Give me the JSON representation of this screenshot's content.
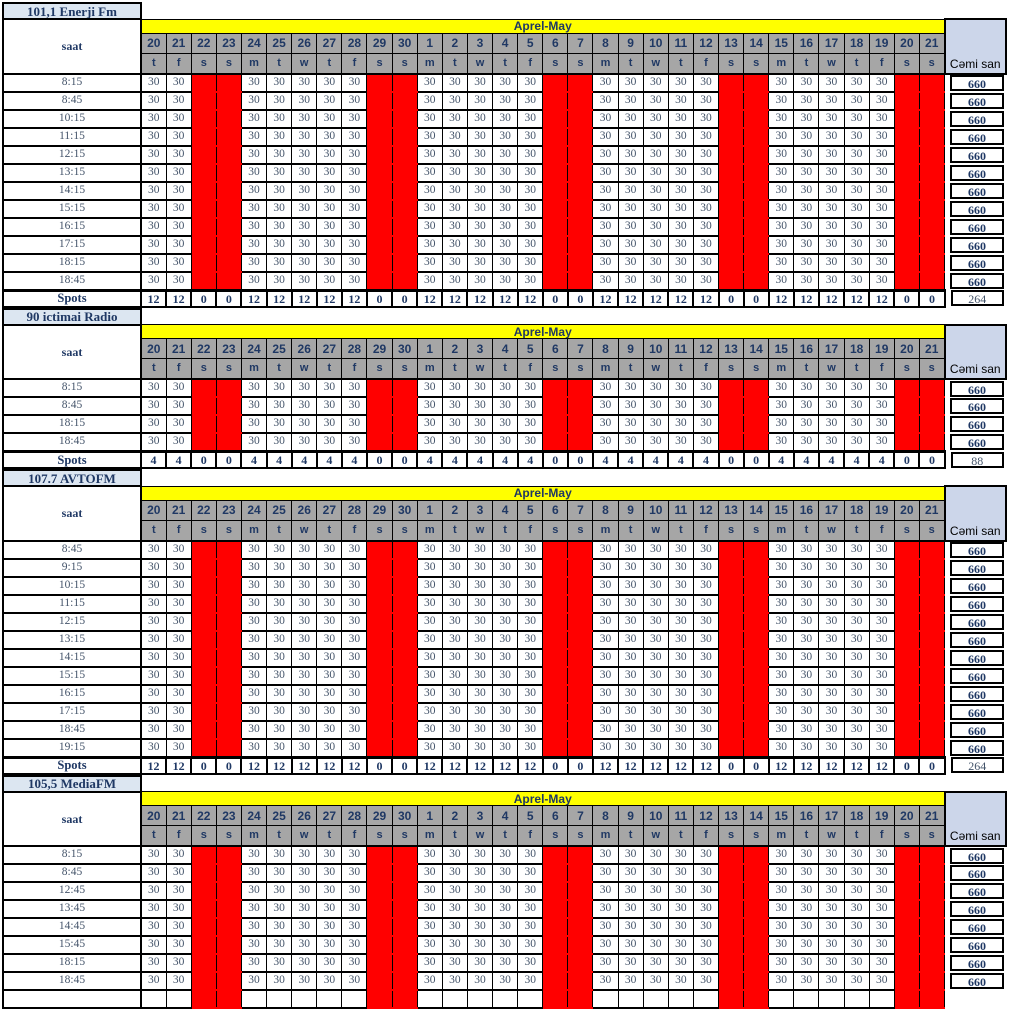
{
  "calendar": {
    "banner_label": "Aprel-May",
    "saat_label": "saat",
    "spots_label": "Spots",
    "total_header": "Cəmi san",
    "days": [
      {
        "num": "20",
        "dow": "t"
      },
      {
        "num": "21",
        "dow": "f"
      },
      {
        "num": "22",
        "dow": "s"
      },
      {
        "num": "23",
        "dow": "s"
      },
      {
        "num": "24",
        "dow": "m"
      },
      {
        "num": "25",
        "dow": "t"
      },
      {
        "num": "26",
        "dow": "w"
      },
      {
        "num": "27",
        "dow": "t"
      },
      {
        "num": "28",
        "dow": "f"
      },
      {
        "num": "29",
        "dow": "s"
      },
      {
        "num": "30",
        "dow": "s"
      },
      {
        "num": "1",
        "dow": "m"
      },
      {
        "num": "2",
        "dow": "t"
      },
      {
        "num": "3",
        "dow": "w"
      },
      {
        "num": "4",
        "dow": "t"
      },
      {
        "num": "5",
        "dow": "f"
      },
      {
        "num": "6",
        "dow": "s"
      },
      {
        "num": "7",
        "dow": "s"
      },
      {
        "num": "8",
        "dow": "m"
      },
      {
        "num": "9",
        "dow": "t"
      },
      {
        "num": "10",
        "dow": "w"
      },
      {
        "num": "11",
        "dow": "t"
      },
      {
        "num": "12",
        "dow": "f"
      },
      {
        "num": "13",
        "dow": "s"
      },
      {
        "num": "14",
        "dow": "s"
      },
      {
        "num": "15",
        "dow": "m"
      },
      {
        "num": "16",
        "dow": "t"
      },
      {
        "num": "17",
        "dow": "w"
      },
      {
        "num": "18",
        "dow": "t"
      },
      {
        "num": "19",
        "dow": "f"
      },
      {
        "num": "20",
        "dow": "s"
      },
      {
        "num": "21",
        "dow": "s"
      }
    ]
  },
  "stations": [
    {
      "name": "101,1 Enerji Fm",
      "times": [
        "8:15",
        "8:45",
        "10:15",
        "11:15",
        "12:15",
        "13:15",
        "14:15",
        "15:15",
        "16:15",
        "17:15",
        "18:15",
        "18:45"
      ],
      "spot_seconds": "30",
      "row_total": "660",
      "spots_weekday": "12",
      "spots_weekend": "0",
      "spots_total": "264",
      "truncated": false
    },
    {
      "name": "90 ictimai Radio",
      "times": [
        "8:15",
        "8:45",
        "18:15",
        "18:45"
      ],
      "spot_seconds": "30",
      "row_total": "660",
      "spots_weekday": "4",
      "spots_weekend": "0",
      "spots_total": "88",
      "truncated": false
    },
    {
      "name": "107.7 AVTOFM",
      "times": [
        "8:45",
        "9:15",
        "10:15",
        "11:15",
        "12:15",
        "13:15",
        "14:15",
        "15:15",
        "16:15",
        "17:15",
        "18:45",
        "19:15"
      ],
      "spot_seconds": "30",
      "row_total": "660",
      "spots_weekday": "12",
      "spots_weekend": "0",
      "spots_total": "264",
      "truncated": false
    },
    {
      "name": "105,5 MediaFM",
      "times": [
        "8:15",
        "8:45",
        "12:45",
        "13:45",
        "14:45",
        "15:45",
        "18:15",
        "18:45"
      ],
      "spot_seconds": "30",
      "row_total": "660",
      "truncated": true
    }
  ],
  "colors": {
    "banner_bg": "#ffff00",
    "weekend_bg": "#ff0000",
    "day_header_bg": "#a6a6a6",
    "station_title_bg": "#dce6f1",
    "total_header_bg": "#ccd6ea",
    "heading_text": "#1f3864",
    "value_text": "#44546a",
    "grid_border": "#000000"
  }
}
